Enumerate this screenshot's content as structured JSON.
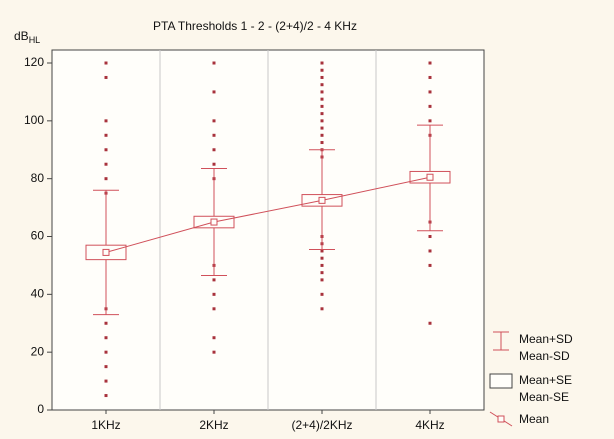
{
  "chart_data": {
    "type": "box",
    "title": "PTA Thresholds 1 - 2 - (2+4)/2 - 4 KHz",
    "y_label": "dB",
    "y_label_sub": "HL",
    "categories": [
      "1KHz",
      "2KHz",
      "(2+4)/2KHz",
      "4KHz"
    ],
    "mean": [
      54.5,
      65,
      72.5,
      80.5
    ],
    "mean_plus_se": [
      57,
      67,
      74.5,
      82.5
    ],
    "mean_minus_se": [
      52,
      63,
      70.5,
      78.5
    ],
    "mean_plus_sd": [
      76,
      83.5,
      90,
      98.5
    ],
    "mean_minus_sd": [
      33,
      46.5,
      55.5,
      62
    ],
    "points": [
      [
        120,
        115,
        100,
        95,
        90,
        85,
        80,
        75,
        35,
        30,
        25,
        20,
        15,
        10,
        5
      ],
      [
        120,
        110,
        100,
        95,
        90,
        85,
        80,
        50,
        45,
        40,
        35,
        25,
        20
      ],
      [
        120,
        117.5,
        115,
        112.5,
        110,
        107.5,
        105,
        102.5,
        100,
        97.5,
        95,
        92.5,
        90,
        87.5,
        60,
        57.5,
        55,
        52.5,
        50,
        47.5,
        45,
        40,
        35
      ],
      [
        120,
        115,
        110,
        105,
        100,
        95,
        65,
        60,
        55,
        50,
        30
      ]
    ],
    "legend": {
      "sd": [
        "Mean+SD",
        "Mean-SD"
      ],
      "se": [
        "Mean+SE",
        "Mean-SE"
      ],
      "mean": "Mean"
    },
    "legend_position": "right-bottom",
    "color": "#d0505a",
    "point_color": "#a8323c",
    "ylim": [
      0,
      124.5
    ],
    "yticks": [
      0,
      20,
      40,
      60,
      80,
      100,
      120
    ],
    "category_dividers": true
  }
}
